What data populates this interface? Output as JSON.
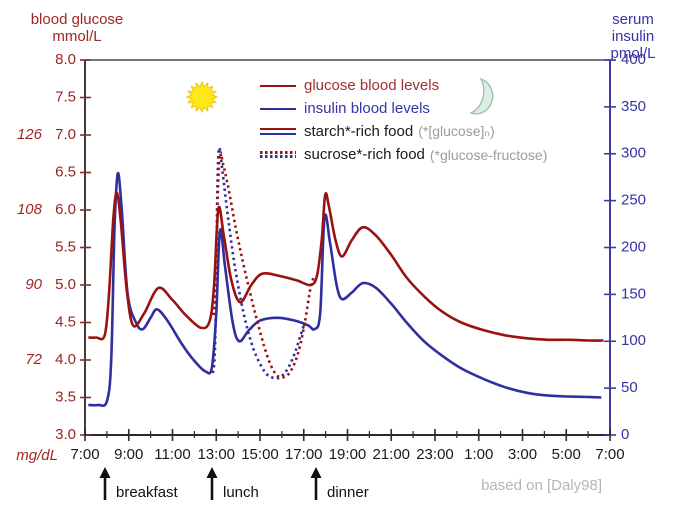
{
  "chart_data": {
    "type": "line",
    "title": "",
    "x_axis": {
      "unit": "time of day",
      "start_hour": 7,
      "end_hour": 31,
      "major_tick_every_hours": 2,
      "minor_tick_every_hours": 1,
      "tick_labels": [
        "7:00",
        "9:00",
        "11:00",
        "13:00",
        "15:00",
        "17:00",
        "19:00",
        "21:00",
        "23:00",
        "1:00",
        "3:00",
        "5:00",
        "7:00"
      ]
    },
    "left_axis": {
      "label": "blood glucose",
      "unit": "mmol/L",
      "min": 3.0,
      "max": 8.0,
      "tick_step": 0.5,
      "tick_labels": [
        "8.0",
        "7.5",
        "7.0",
        "6.5",
        "6.0",
        "5.5",
        "5.0",
        "4.5",
        "4.0",
        "3.5",
        "3.0"
      ],
      "color": "#9b2323"
    },
    "left_axis_mgdl": {
      "label": "mg/dL",
      "ticks": [
        {
          "mmol": 7.0,
          "label": "126"
        },
        {
          "mmol": 6.0,
          "label": "108"
        },
        {
          "mmol": 5.0,
          "label": "90"
        },
        {
          "mmol": 4.0,
          "label": "72"
        }
      ]
    },
    "right_axis": {
      "label": "serum insulin",
      "unit": "pmol/L",
      "min": 0,
      "max": 400,
      "tick_step": 50,
      "tick_labels": [
        "400",
        "350",
        "300",
        "250",
        "200",
        "150",
        "100",
        "50",
        "0"
      ],
      "color": "#3434a6"
    },
    "series": [
      {
        "name": "glucose blood levels (starch-rich food)",
        "axis": "left",
        "style": "solid",
        "color": "#9b1212",
        "points": [
          [
            7.15,
            4.3
          ],
          [
            7.5,
            4.3
          ],
          [
            7.9,
            4.33
          ],
          [
            8.1,
            4.9
          ],
          [
            8.3,
            5.9
          ],
          [
            8.46,
            6.23
          ],
          [
            8.65,
            5.8
          ],
          [
            8.9,
            4.95
          ],
          [
            9.2,
            4.46
          ],
          [
            9.7,
            4.62
          ],
          [
            10.35,
            4.96
          ],
          [
            11.0,
            4.8
          ],
          [
            11.6,
            4.6
          ],
          [
            12.3,
            4.43
          ],
          [
            12.7,
            4.52
          ],
          [
            12.9,
            5.0
          ],
          [
            13.1,
            6.02
          ],
          [
            13.35,
            5.65
          ],
          [
            13.7,
            5.05
          ],
          [
            14.1,
            4.77
          ],
          [
            14.6,
            5.0
          ],
          [
            15.1,
            5.15
          ],
          [
            15.9,
            5.12
          ],
          [
            16.7,
            5.06
          ],
          [
            17.3,
            5.0
          ],
          [
            17.6,
            5.12
          ],
          [
            17.82,
            5.6
          ],
          [
            17.98,
            6.2
          ],
          [
            18.15,
            6.05
          ],
          [
            18.45,
            5.6
          ],
          [
            18.75,
            5.38
          ],
          [
            19.2,
            5.6
          ],
          [
            19.7,
            5.77
          ],
          [
            20.3,
            5.66
          ],
          [
            21.0,
            5.4
          ],
          [
            21.7,
            5.1
          ],
          [
            22.5,
            4.85
          ],
          [
            23.3,
            4.65
          ],
          [
            24.2,
            4.5
          ],
          [
            25.2,
            4.4
          ],
          [
            26.2,
            4.33
          ],
          [
            27.2,
            4.29
          ],
          [
            28.2,
            4.27
          ],
          [
            29.2,
            4.27
          ],
          [
            30.0,
            4.26
          ],
          [
            30.7,
            4.26
          ]
        ]
      },
      {
        "name": "insulin blood levels (starch-rich food)",
        "axis": "right",
        "style": "solid",
        "color": "#2f2f9e",
        "points": [
          [
            7.15,
            32
          ],
          [
            7.6,
            32
          ],
          [
            8.0,
            36
          ],
          [
            8.2,
            80
          ],
          [
            8.35,
            220
          ],
          [
            8.5,
            279
          ],
          [
            8.68,
            240
          ],
          [
            8.95,
            150
          ],
          [
            9.35,
            119
          ],
          [
            9.65,
            113
          ],
          [
            10.0,
            125
          ],
          [
            10.3,
            134
          ],
          [
            10.8,
            121
          ],
          [
            11.4,
            98
          ],
          [
            12.0,
            79
          ],
          [
            12.5,
            68
          ],
          [
            12.8,
            72
          ],
          [
            13.0,
            130
          ],
          [
            13.17,
            218
          ],
          [
            13.4,
            180
          ],
          [
            13.75,
            120
          ],
          [
            14.05,
            100
          ],
          [
            14.5,
            112
          ],
          [
            15.0,
            122
          ],
          [
            15.8,
            125
          ],
          [
            16.6,
            122
          ],
          [
            17.2,
            117
          ],
          [
            17.5,
            113
          ],
          [
            17.75,
            130
          ],
          [
            17.95,
            232
          ],
          [
            18.2,
            205
          ],
          [
            18.5,
            160
          ],
          [
            18.75,
            145
          ],
          [
            19.2,
            152
          ],
          [
            19.7,
            162
          ],
          [
            20.3,
            157
          ],
          [
            21.0,
            140
          ],
          [
            21.7,
            120
          ],
          [
            22.5,
            100
          ],
          [
            23.3,
            85
          ],
          [
            24.2,
            71
          ],
          [
            25.2,
            60
          ],
          [
            26.2,
            51
          ],
          [
            27.2,
            45
          ],
          [
            28.2,
            42
          ],
          [
            29.2,
            41
          ],
          [
            30.0,
            40.5
          ],
          [
            30.6,
            40
          ]
        ]
      },
      {
        "name": "glucose blood levels (sucrose-rich food)",
        "axis": "left",
        "style": "dotted",
        "color": "#9b1212",
        "points": [
          [
            12.88,
            4.6
          ],
          [
            13.0,
            5.3
          ],
          [
            13.08,
            6.3
          ],
          [
            13.17,
            6.76
          ],
          [
            13.32,
            6.6
          ],
          [
            13.55,
            6.3
          ],
          [
            13.9,
            5.75
          ],
          [
            14.3,
            5.2
          ],
          [
            14.8,
            4.6
          ],
          [
            15.3,
            4.08
          ],
          [
            15.7,
            3.82
          ],
          [
            16.05,
            3.77
          ],
          [
            16.4,
            3.85
          ],
          [
            16.75,
            4.1
          ],
          [
            17.05,
            4.5
          ],
          [
            17.3,
            4.95
          ],
          [
            17.45,
            5.1
          ]
        ]
      },
      {
        "name": "insulin blood levels (sucrose-rich food)",
        "axis": "right",
        "style": "dotted",
        "color": "#2f2f9e",
        "points": [
          [
            12.85,
            66
          ],
          [
            12.95,
            100
          ],
          [
            13.05,
            260
          ],
          [
            13.13,
            306
          ],
          [
            13.3,
            278
          ],
          [
            13.55,
            230
          ],
          [
            13.85,
            180
          ],
          [
            14.25,
            130
          ],
          [
            14.7,
            92
          ],
          [
            15.2,
            68
          ],
          [
            15.6,
            61
          ],
          [
            15.95,
            62
          ],
          [
            16.3,
            72
          ],
          [
            16.6,
            88
          ],
          [
            16.85,
            106
          ],
          [
            17.05,
            120
          ]
        ]
      }
    ],
    "legend": {
      "items": [
        {
          "label": "glucose blood levels",
          "note": "",
          "marker": "line-red"
        },
        {
          "label": "insulin blood levels",
          "note": "",
          "marker": "line-blue"
        },
        {
          "label": "starch*-rich food",
          "note": "(*[glucose]ₙ)",
          "marker": "double-line"
        },
        {
          "label": "sucrose*-rich food",
          "note": "(*glucose-fructose)",
          "marker": "double-dotted"
        }
      ]
    },
    "annotations": {
      "meals": [
        {
          "label": "breakfast",
          "hour": 7.9
        },
        {
          "label": "lunch",
          "hour": 12.85
        },
        {
          "label": "dinner",
          "hour": 17.6
        }
      ],
      "sun_hour": 12.35,
      "moon_hour": 24.9,
      "attribution": "based on [Daly98]"
    }
  }
}
